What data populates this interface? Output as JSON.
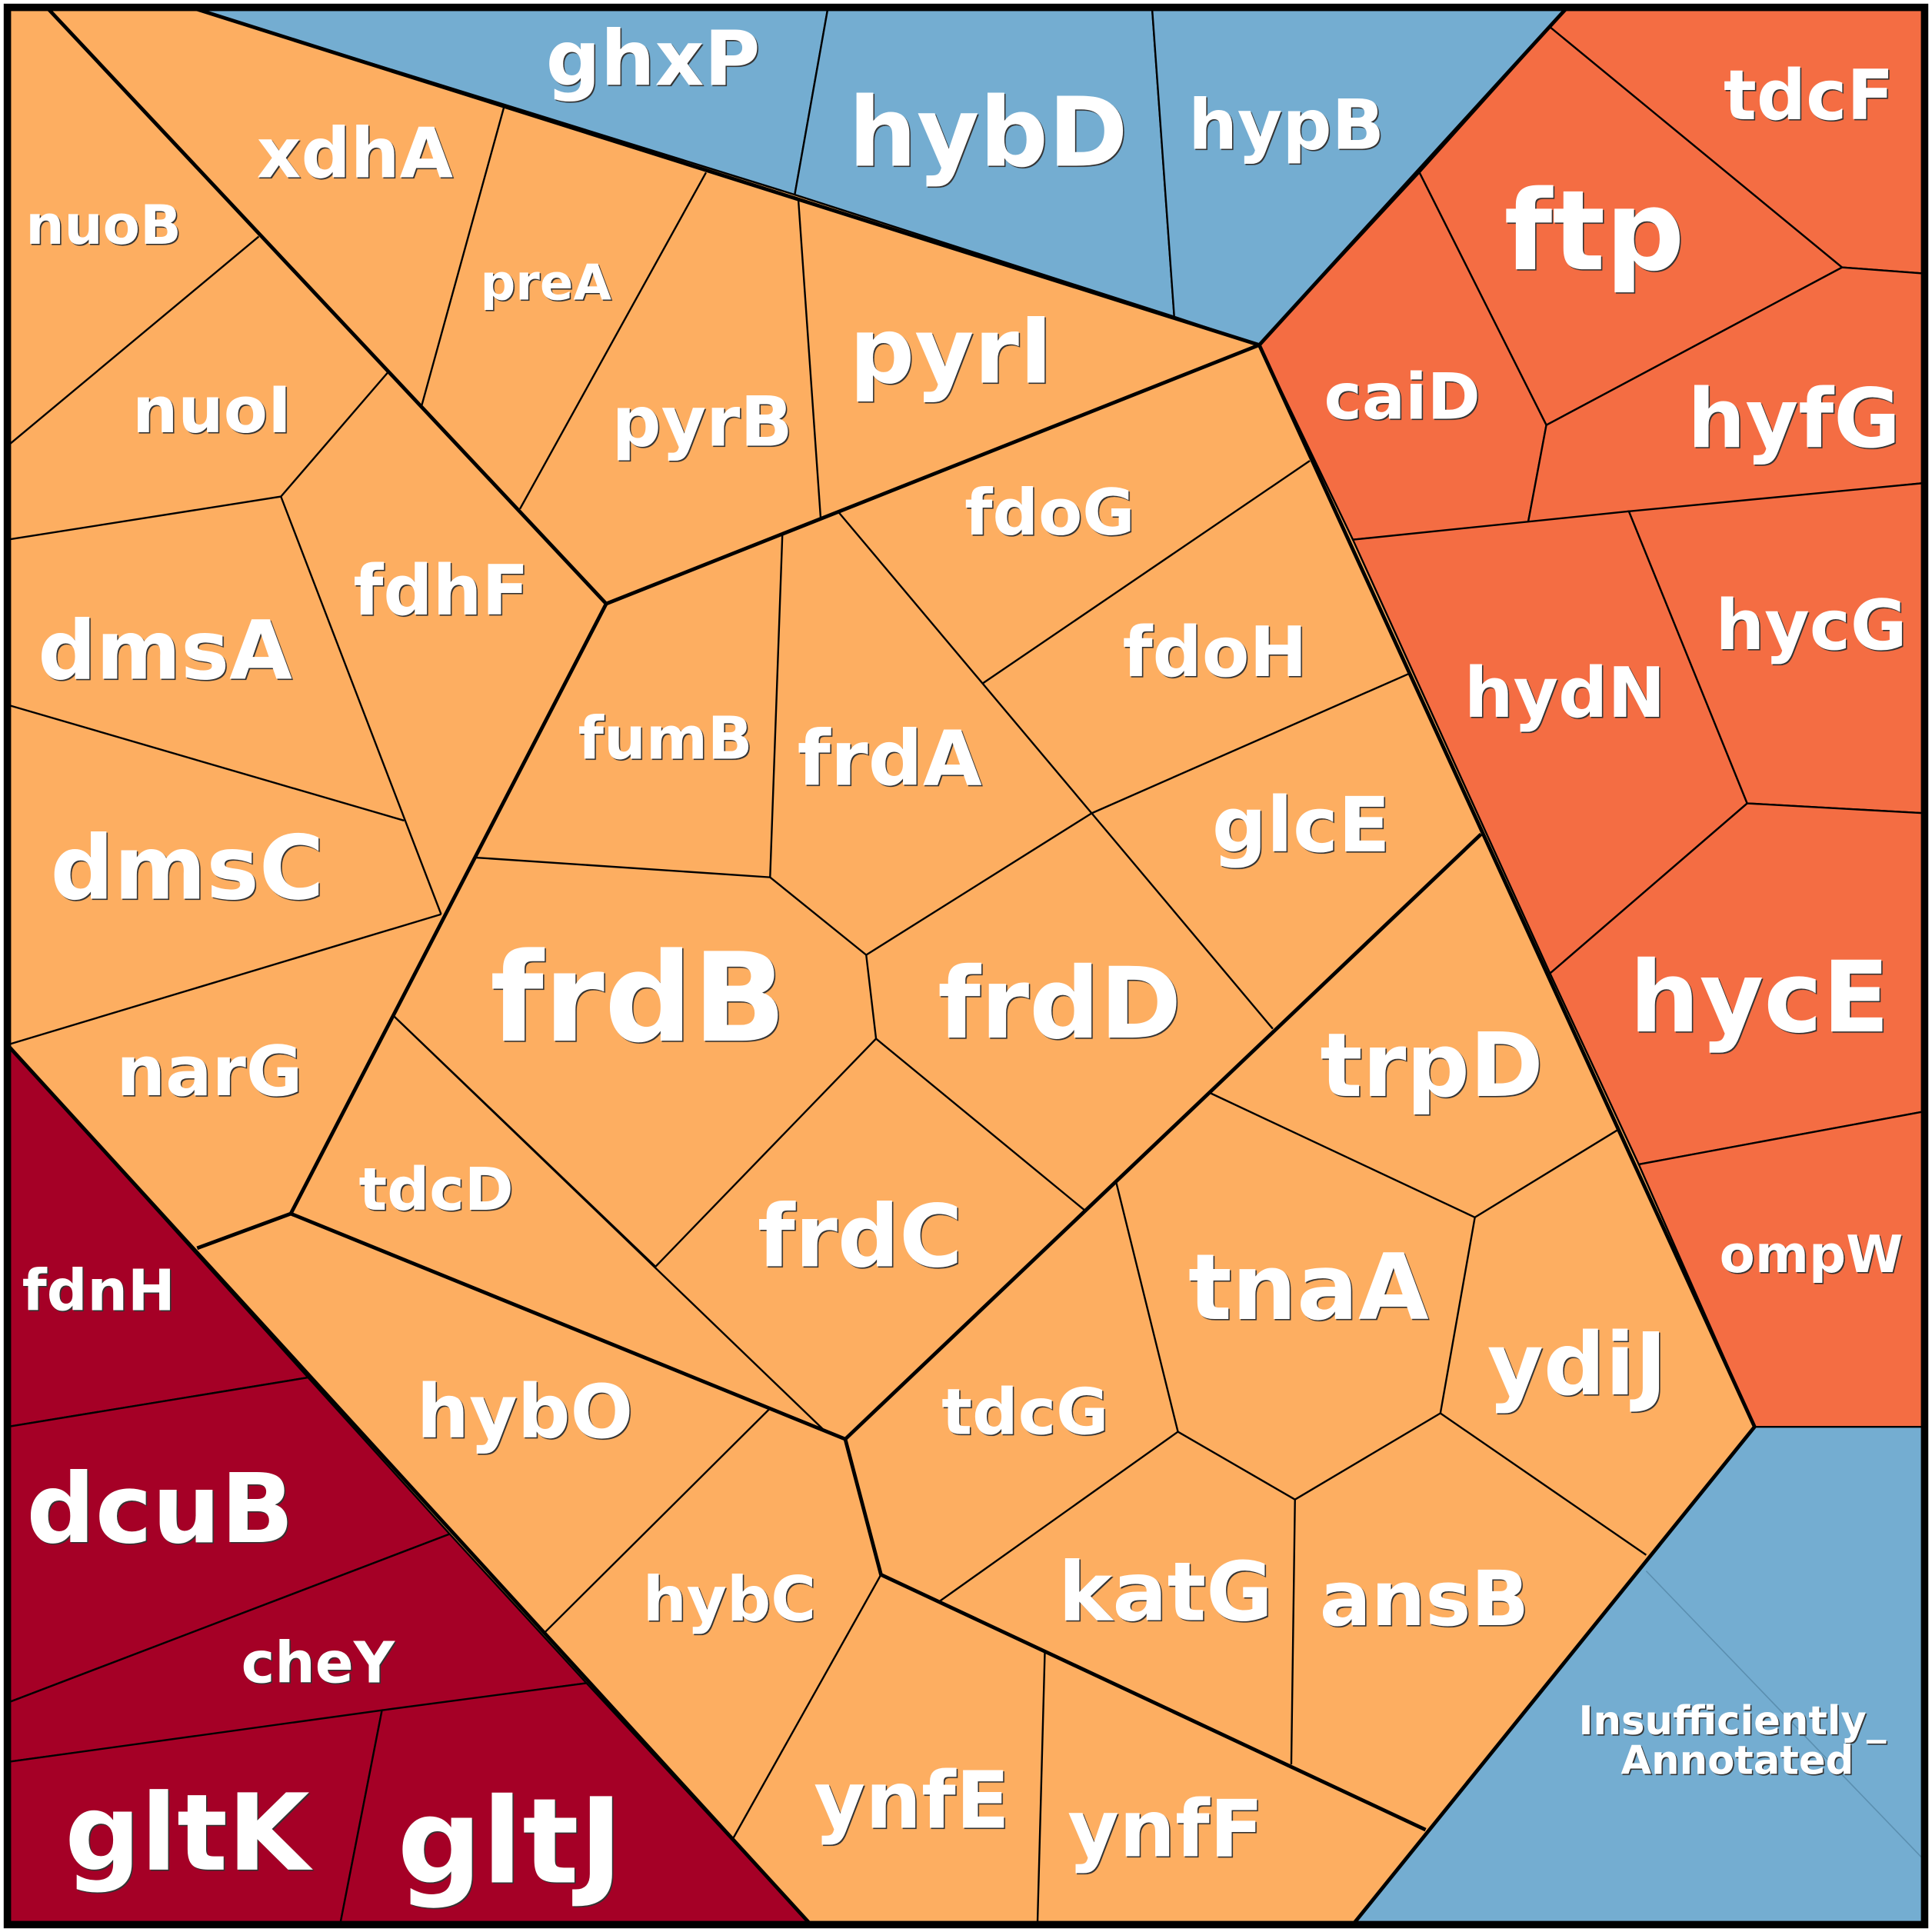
{
  "cells": [
    {
      "label": "ghxP"
    },
    {
      "label": "hybD"
    },
    {
      "label": "hypB"
    },
    {
      "label": "tdcF"
    },
    {
      "label": "ftp"
    },
    {
      "label": "caiD"
    },
    {
      "label": "hyfG"
    },
    {
      "label": "hydN"
    },
    {
      "label": "hycG"
    },
    {
      "label": "hycE"
    },
    {
      "label": "ompW"
    },
    {
      "label_lines": [
        "Insufficiently_",
        "Annotated"
      ]
    },
    {
      "label": "fdnH"
    },
    {
      "label": "dcuB"
    },
    {
      "label": "cheY"
    },
    {
      "label": "gltK"
    },
    {
      "label": "gltJ"
    },
    {
      "label": "nuoB"
    },
    {
      "label": "xdhA"
    },
    {
      "label": "preA"
    },
    {
      "label": "nuoI"
    },
    {
      "label": "pyrB"
    },
    {
      "label": "pyrI"
    },
    {
      "label": "fdoG"
    },
    {
      "label": "fdhF"
    },
    {
      "label": "dmsA"
    },
    {
      "label": "fdoH"
    },
    {
      "label": "fumB"
    },
    {
      "label": "frdA"
    },
    {
      "label": "glcE"
    },
    {
      "label": "dmsC"
    },
    {
      "label": "frdB"
    },
    {
      "label": "frdD"
    },
    {
      "label": "trpD"
    },
    {
      "label": "narG"
    },
    {
      "label": "tdcD"
    },
    {
      "label": "frdC"
    },
    {
      "label": "tnaA"
    },
    {
      "label": "ydiJ"
    },
    {
      "label": "hybO"
    },
    {
      "label": "tdcG"
    },
    {
      "label": "katG"
    },
    {
      "label": "ansB"
    },
    {
      "label": "hybC"
    },
    {
      "label": "ynfE"
    },
    {
      "label": "ynfF"
    }
  ]
}
